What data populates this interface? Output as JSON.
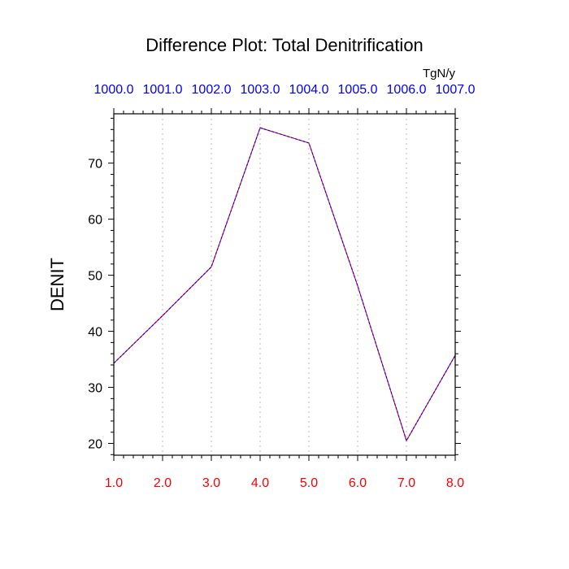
{
  "chart_data": {
    "type": "line",
    "title": "Difference Plot: Total Denitrification",
    "units": "TgN/y",
    "ylabel": "DENIT",
    "xlabel": "",
    "x": [
      1.0,
      2.0,
      3.0,
      4.0,
      5.0,
      6.0,
      7.0,
      8.0
    ],
    "xlim": [
      1.0,
      8.0
    ],
    "ylim": [
      17.9,
      78.8
    ],
    "bottom_tick_labels": [
      "1.0",
      "2.0",
      "3.0",
      "4.0",
      "5.0",
      "6.0",
      "7.0",
      "8.0"
    ],
    "top_tick_labels": [
      "1000.0",
      "1001.0",
      "1002.0",
      "1003.0",
      "1004.0",
      "1005.0",
      "1006.0",
      "1007.0"
    ],
    "y_ticks": [
      20,
      30,
      40,
      50,
      60,
      70
    ],
    "y_tick_labels": [
      "20",
      "30",
      "40",
      "50",
      "60",
      "70"
    ],
    "grid": "vertical dotted",
    "series": [
      {
        "values": [
          34.3,
          42.8,
          51.5,
          76.3,
          73.6,
          48.1,
          20.5,
          35.7
        ],
        "color_a": "#ff0000",
        "color_b": "#0000ff"
      }
    ],
    "colors": {
      "bottom_axis_labels": "#ff0000",
      "top_axis_labels": "#0000ff"
    }
  }
}
